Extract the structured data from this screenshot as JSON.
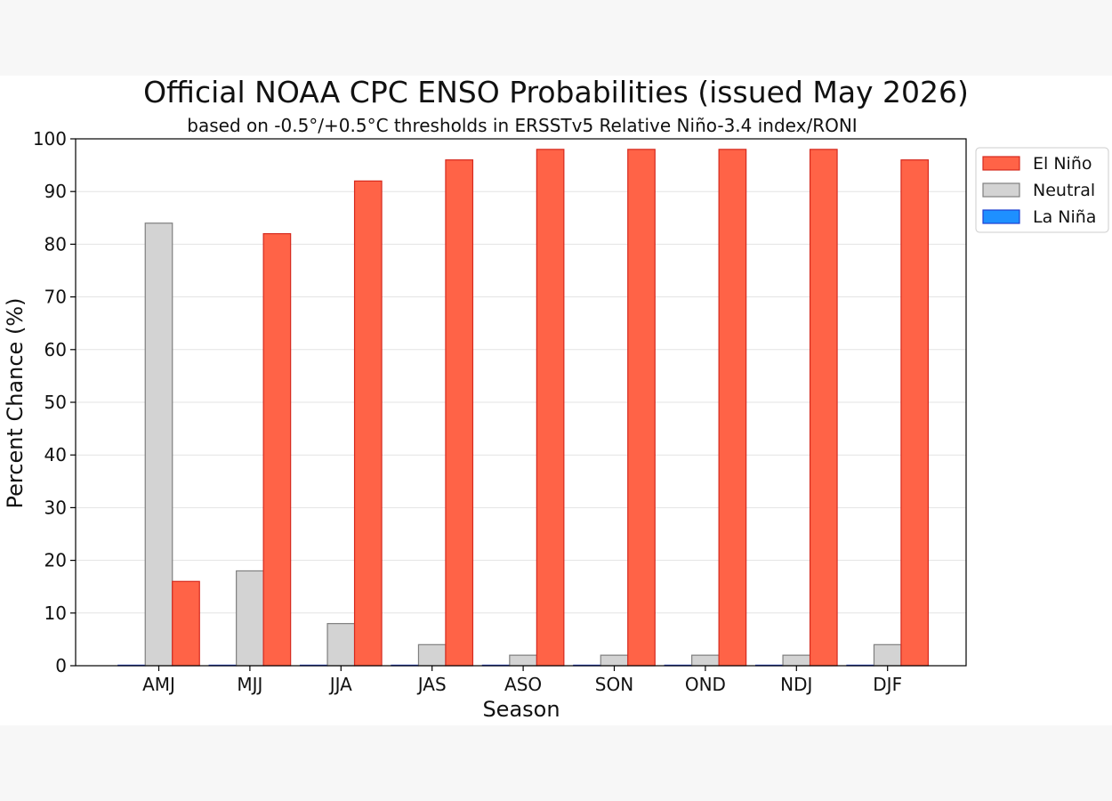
{
  "chart_data": {
    "type": "bar",
    "title": "Official NOAA CPC ENSO Probabilities (issued May 2026)",
    "subtitle": "based on -0.5°/+0.5°C thresholds in ERSSTv5 Relative Niño-3.4 index/RONI",
    "xlabel": "Season",
    "ylabel": "Percent Chance (%)",
    "ylim": [
      0,
      100
    ],
    "yticks": [
      0,
      10,
      20,
      30,
      40,
      50,
      60,
      70,
      80,
      90,
      100
    ],
    "grid": "horizontal",
    "legend_position": "outside-top-right",
    "categories": [
      "AMJ",
      "MJJ",
      "JJA",
      "JAS",
      "ASO",
      "SON",
      "OND",
      "NDJ",
      "DJF"
    ],
    "series": [
      {
        "name": "La Niña",
        "color": "#1e90ff",
        "edge_color": "#1f3fd0",
        "values": [
          0,
          0,
          0,
          0,
          0,
          0,
          0,
          0,
          0
        ]
      },
      {
        "name": "Neutral",
        "color": "#d3d3d3",
        "edge_color": "#7f7f7f",
        "values": [
          84,
          18,
          8,
          4,
          2,
          2,
          2,
          2,
          4
        ]
      },
      {
        "name": "El Niño",
        "color": "#ff6347",
        "edge_color": "#d62a1e",
        "values": [
          16,
          82,
          92,
          96,
          98,
          98,
          98,
          98,
          96
        ]
      }
    ],
    "legend_order": [
      "El Niño",
      "Neutral",
      "La Niña"
    ]
  }
}
